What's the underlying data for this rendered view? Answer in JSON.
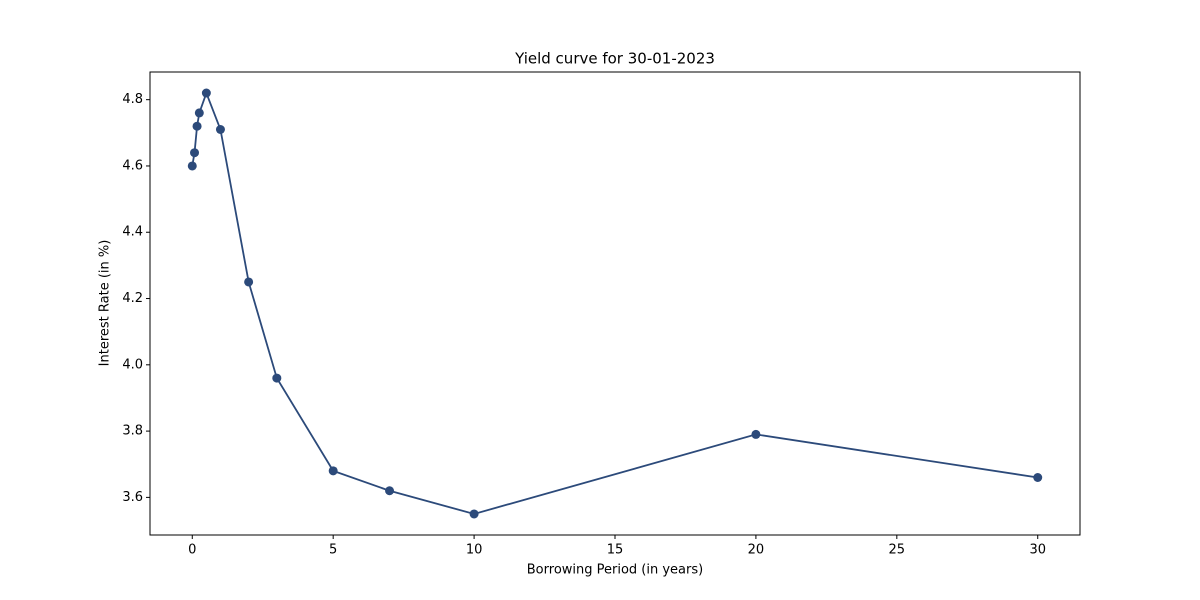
{
  "chart_data": {
    "type": "line",
    "title": "Yield curve for 30-01-2023",
    "xlabel": "Borrowing Period (in years)",
    "ylabel": "Interest Rate (in %)",
    "x": [
      0,
      0.08,
      0.17,
      0.25,
      0.5,
      1,
      2,
      3,
      5,
      7,
      10,
      20,
      30
    ],
    "series": [
      {
        "color": "#2c4a7a",
        "values": [
          4.6,
          4.64,
          4.72,
          4.76,
          4.82,
          4.71,
          4.25,
          3.96,
          3.68,
          3.62,
          3.55,
          3.79,
          3.66
        ]
      }
    ],
    "xlim": [
      -1.5,
      31.5
    ],
    "xticks": [
      0,
      5,
      10,
      15,
      20,
      25,
      30
    ],
    "ylim": [
      3.4865,
      4.8835
    ],
    "yticks": [
      {
        "value": 3.6,
        "label": "3.6"
      },
      {
        "value": 3.8,
        "label": "3.8"
      },
      {
        "value": 4.0,
        "label": "4.0"
      },
      {
        "value": 4.2,
        "label": "4.2"
      },
      {
        "value": 4.4,
        "label": "4.4"
      },
      {
        "value": 4.6,
        "label": "4.6"
      },
      {
        "value": 4.8,
        "label": "4.8"
      }
    ]
  }
}
